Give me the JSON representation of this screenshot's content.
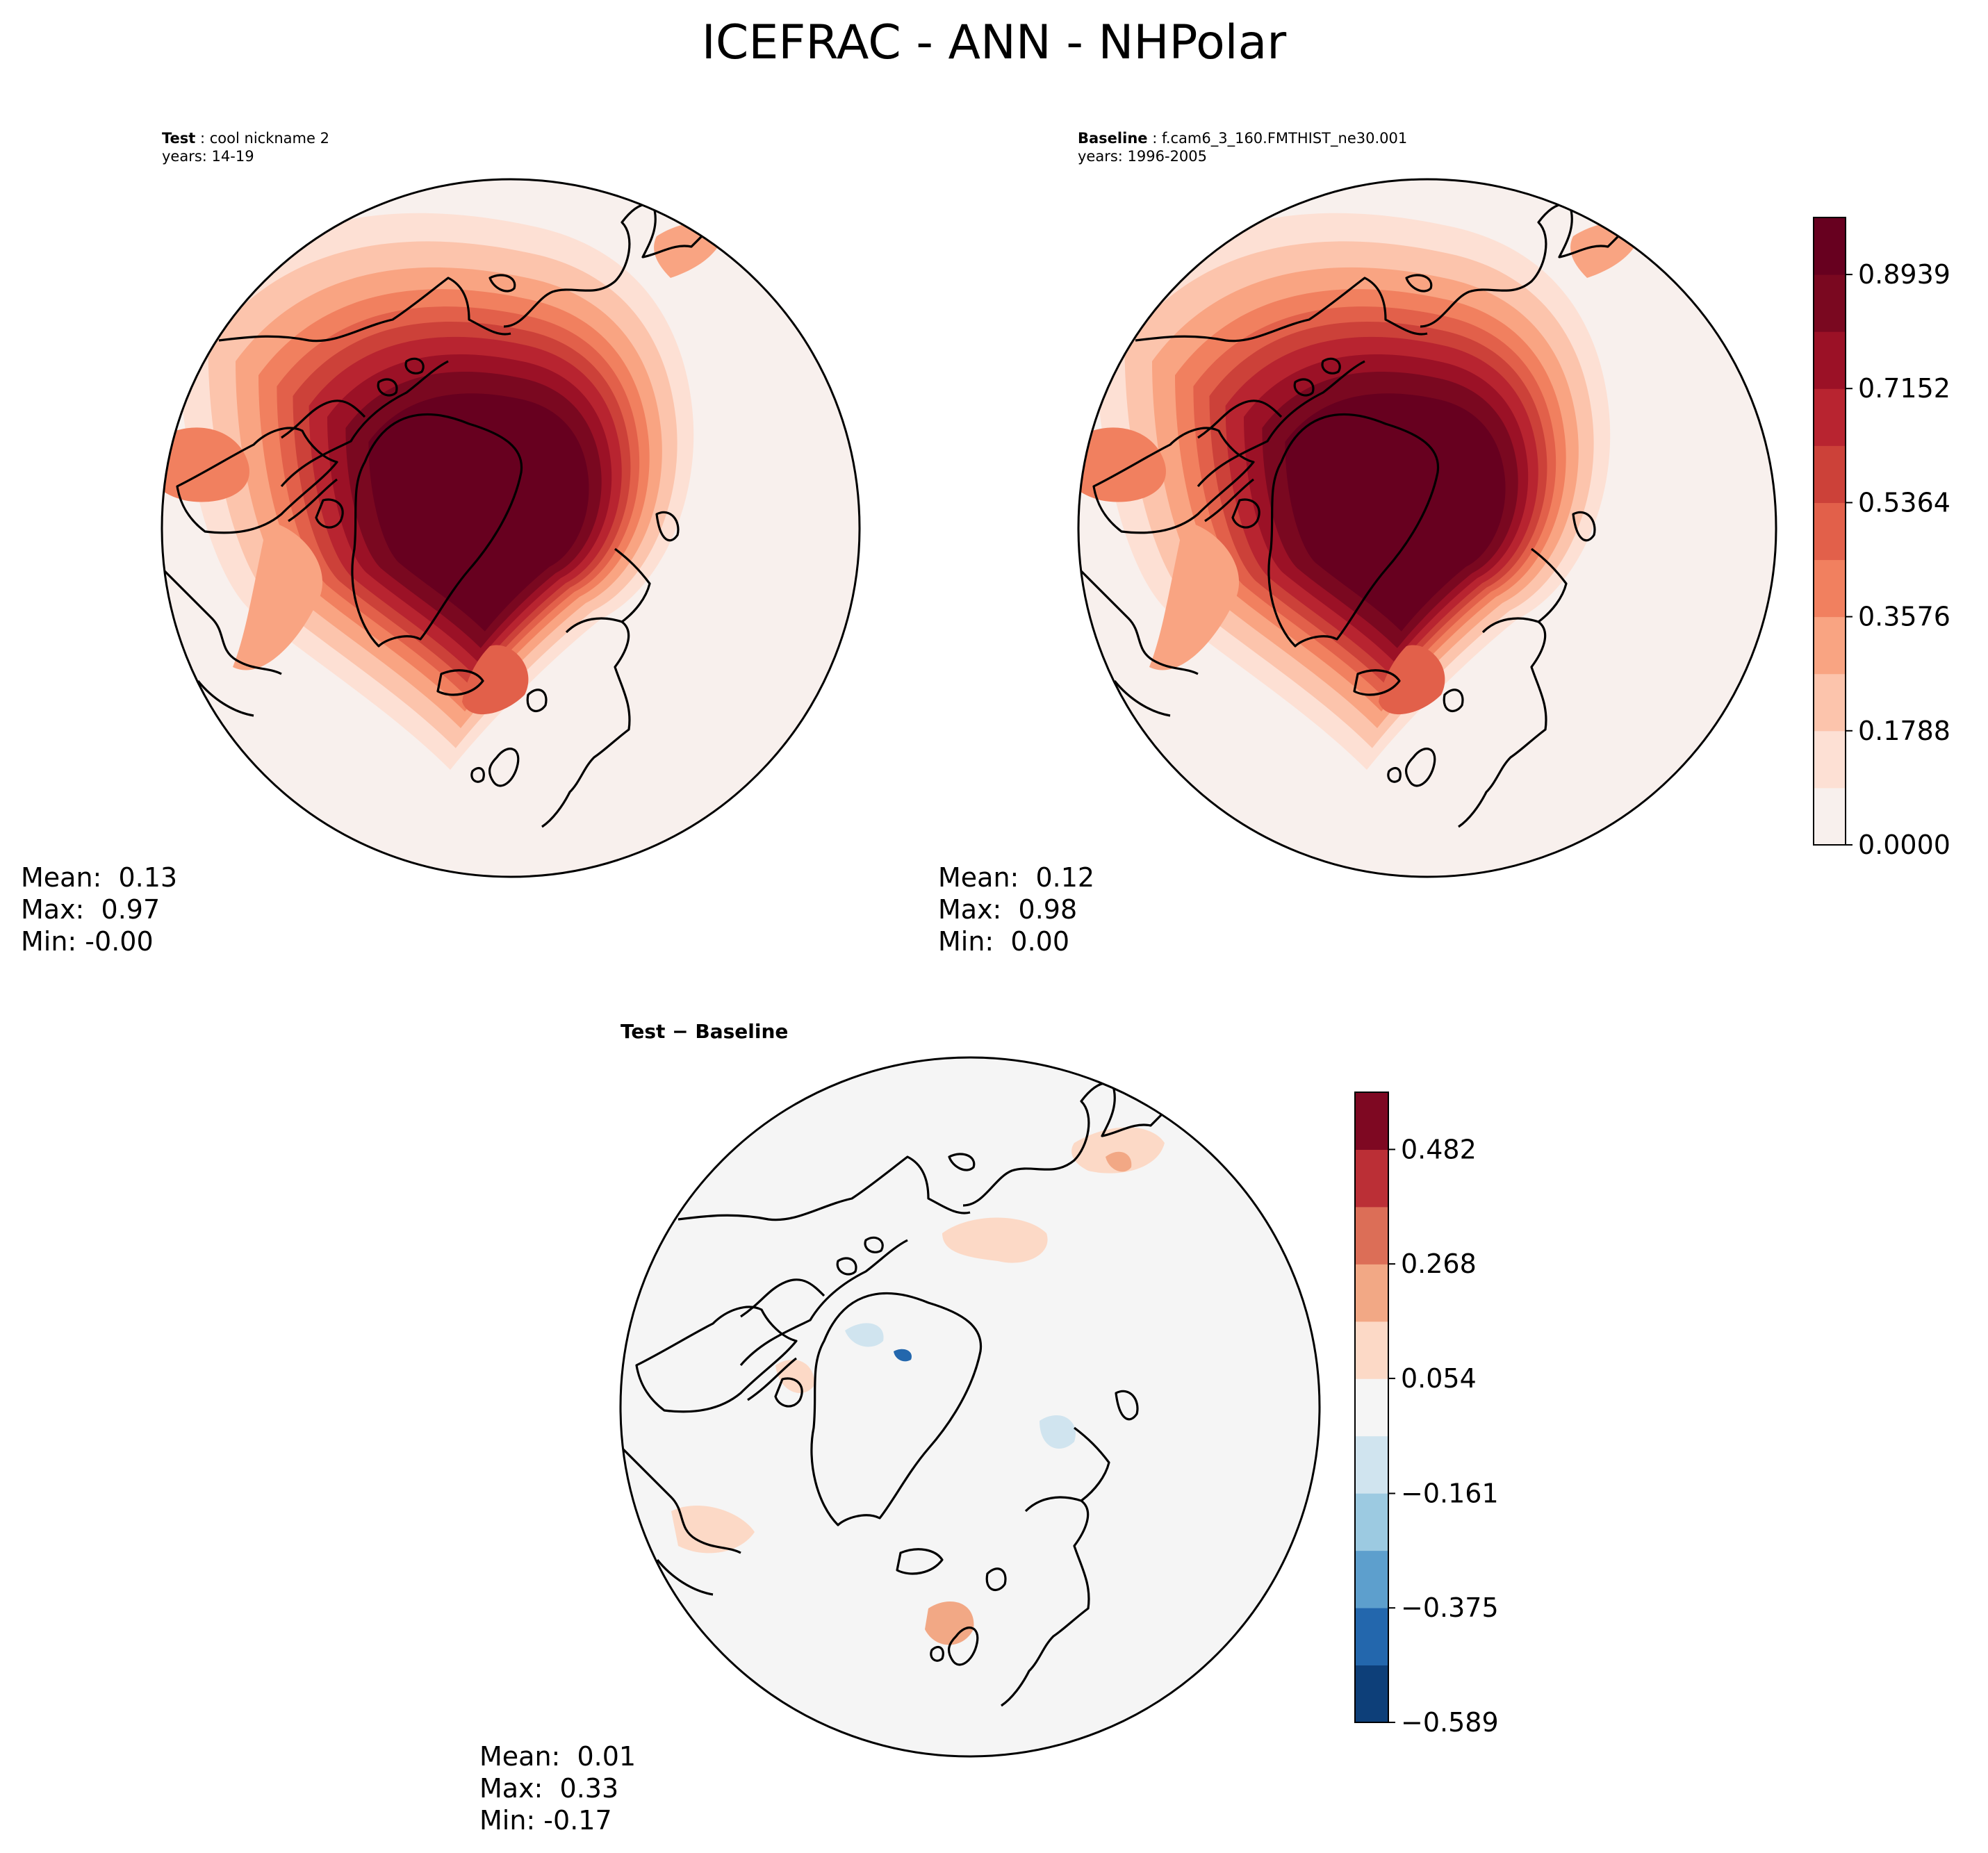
{
  "suptitle": "ICEFRAC - ANN - NHPolar",
  "panels": {
    "test": {
      "label": "Test",
      "name": "cool nickname 2",
      "years": "years: 14-19",
      "stats": {
        "mean": "Mean:  0.13",
        "max": "Max:  0.97",
        "min": "Min: -0.00"
      }
    },
    "baseline": {
      "label": "Baseline",
      "name": "f.cam6_3_160.FMTHIST_ne30.001",
      "years": "years: 1996-2005",
      "stats": {
        "mean": "Mean:  0.12",
        "max": "Max:  0.98",
        "min": "Min:  0.00"
      }
    },
    "diff": {
      "title": "Test − Baseline",
      "stats": {
        "mean": "Mean:  0.01",
        "max": "Max:  0.33",
        "min": "Min: -0.17"
      }
    }
  },
  "chart_data": [
    {
      "type": "heatmap",
      "panel": "Test",
      "projection": "north polar stereographic",
      "colormap": "Reds",
      "stats": {
        "mean": 0.13,
        "max": 0.97,
        "min": -0.0
      }
    },
    {
      "type": "heatmap",
      "panel": "Baseline",
      "projection": "north polar stereographic",
      "colormap": "Reds",
      "stats": {
        "mean": 0.12,
        "max": 0.98,
        "min": 0.0
      },
      "colorbar": {
        "range": [
          0.0,
          0.9833
        ],
        "levels": 11,
        "ticks": [
          0.0,
          0.1788,
          0.3576,
          0.5364,
          0.7152,
          0.8939
        ],
        "tick_labels": [
          "0.0000",
          "0.1788",
          "0.3576",
          "0.5364",
          "0.7152",
          "0.8939"
        ]
      }
    },
    {
      "type": "heatmap",
      "panel": "Test − Baseline",
      "projection": "north polar stereographic",
      "colormap": "RdBu_r",
      "stats": {
        "mean": 0.01,
        "max": 0.33,
        "min": -0.17
      },
      "colorbar": {
        "range": [
          -0.589,
          0.589
        ],
        "levels": 11,
        "ticks": [
          -0.589,
          -0.375,
          -0.161,
          0.054,
          0.268,
          0.482
        ],
        "tick_labels": [
          "−0.589",
          "−0.375",
          "−0.161",
          "0.054",
          "0.268",
          "0.482"
        ]
      }
    }
  ],
  "colors": {
    "reds": [
      "#f8f0ed",
      "#fde0d4",
      "#fcc4ac",
      "#f9a482",
      "#f1805f",
      "#e2604a",
      "#cc4139",
      "#b82430",
      "#9b1126",
      "#7a0820",
      "#67001f"
    ],
    "rdbu": [
      "#0d3f79",
      "#2367ad",
      "#5d9fcd",
      "#9ccae1",
      "#d0e4ef",
      "#f5f5f5",
      "#fcd9c6",
      "#f2a885",
      "#dc6e57",
      "#bb2f36",
      "#7e0822"
    ],
    "land_line": "#000000",
    "ocean_test": "#f8f0ed",
    "ocean_diff": "#f5f5f5"
  }
}
